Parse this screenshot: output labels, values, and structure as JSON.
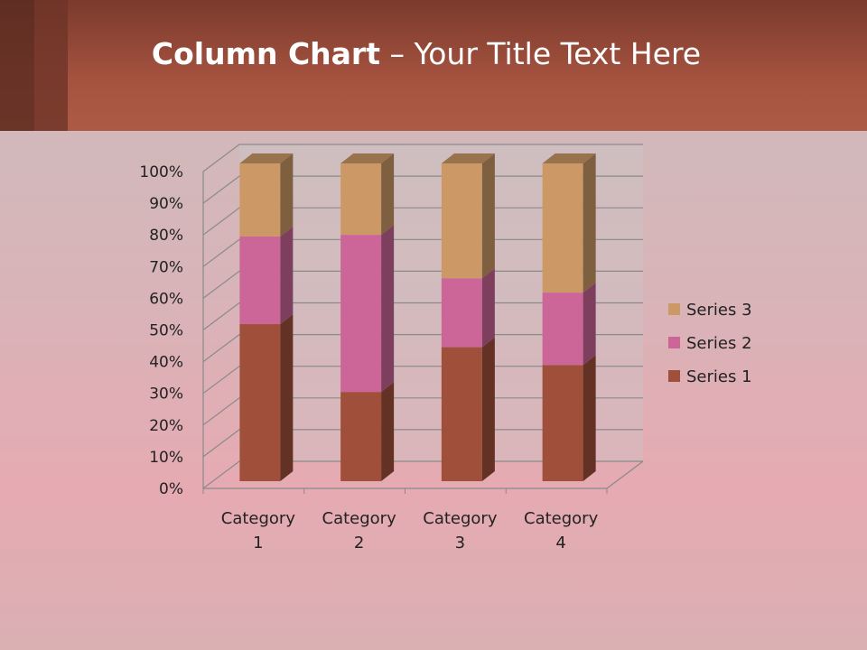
{
  "slide": {
    "title_bold": "Column Chart",
    "title_rest": " – Your Title Text Here"
  },
  "chart_data": {
    "type": "bar",
    "subtype": "100% stacked 3D column",
    "categories": [
      "Category 1",
      "Category 2",
      "Category 3",
      "Category 4"
    ],
    "category_lines": [
      [
        "Category",
        "1"
      ],
      [
        "Category",
        "2"
      ],
      [
        "Category",
        "3"
      ],
      [
        "Category",
        "4"
      ]
    ],
    "series": [
      {
        "name": "Series 1",
        "values": [
          4.3,
          2.5,
          3.5,
          4.5
        ],
        "color": "#a0503a"
      },
      {
        "name": "Series 2",
        "values": [
          2.4,
          4.4,
          1.8,
          2.8
        ],
        "color": "#cc6699"
      },
      {
        "name": "Series 3",
        "values": [
          2,
          2,
          3,
          5
        ],
        "color": "#cc9966"
      }
    ],
    "yticks": [
      "0%",
      "10%",
      "20%",
      "30%",
      "40%",
      "50%",
      "60%",
      "70%",
      "80%",
      "90%",
      "100%"
    ],
    "ylim": [
      0,
      100
    ],
    "grid": true,
    "legend": "right"
  }
}
